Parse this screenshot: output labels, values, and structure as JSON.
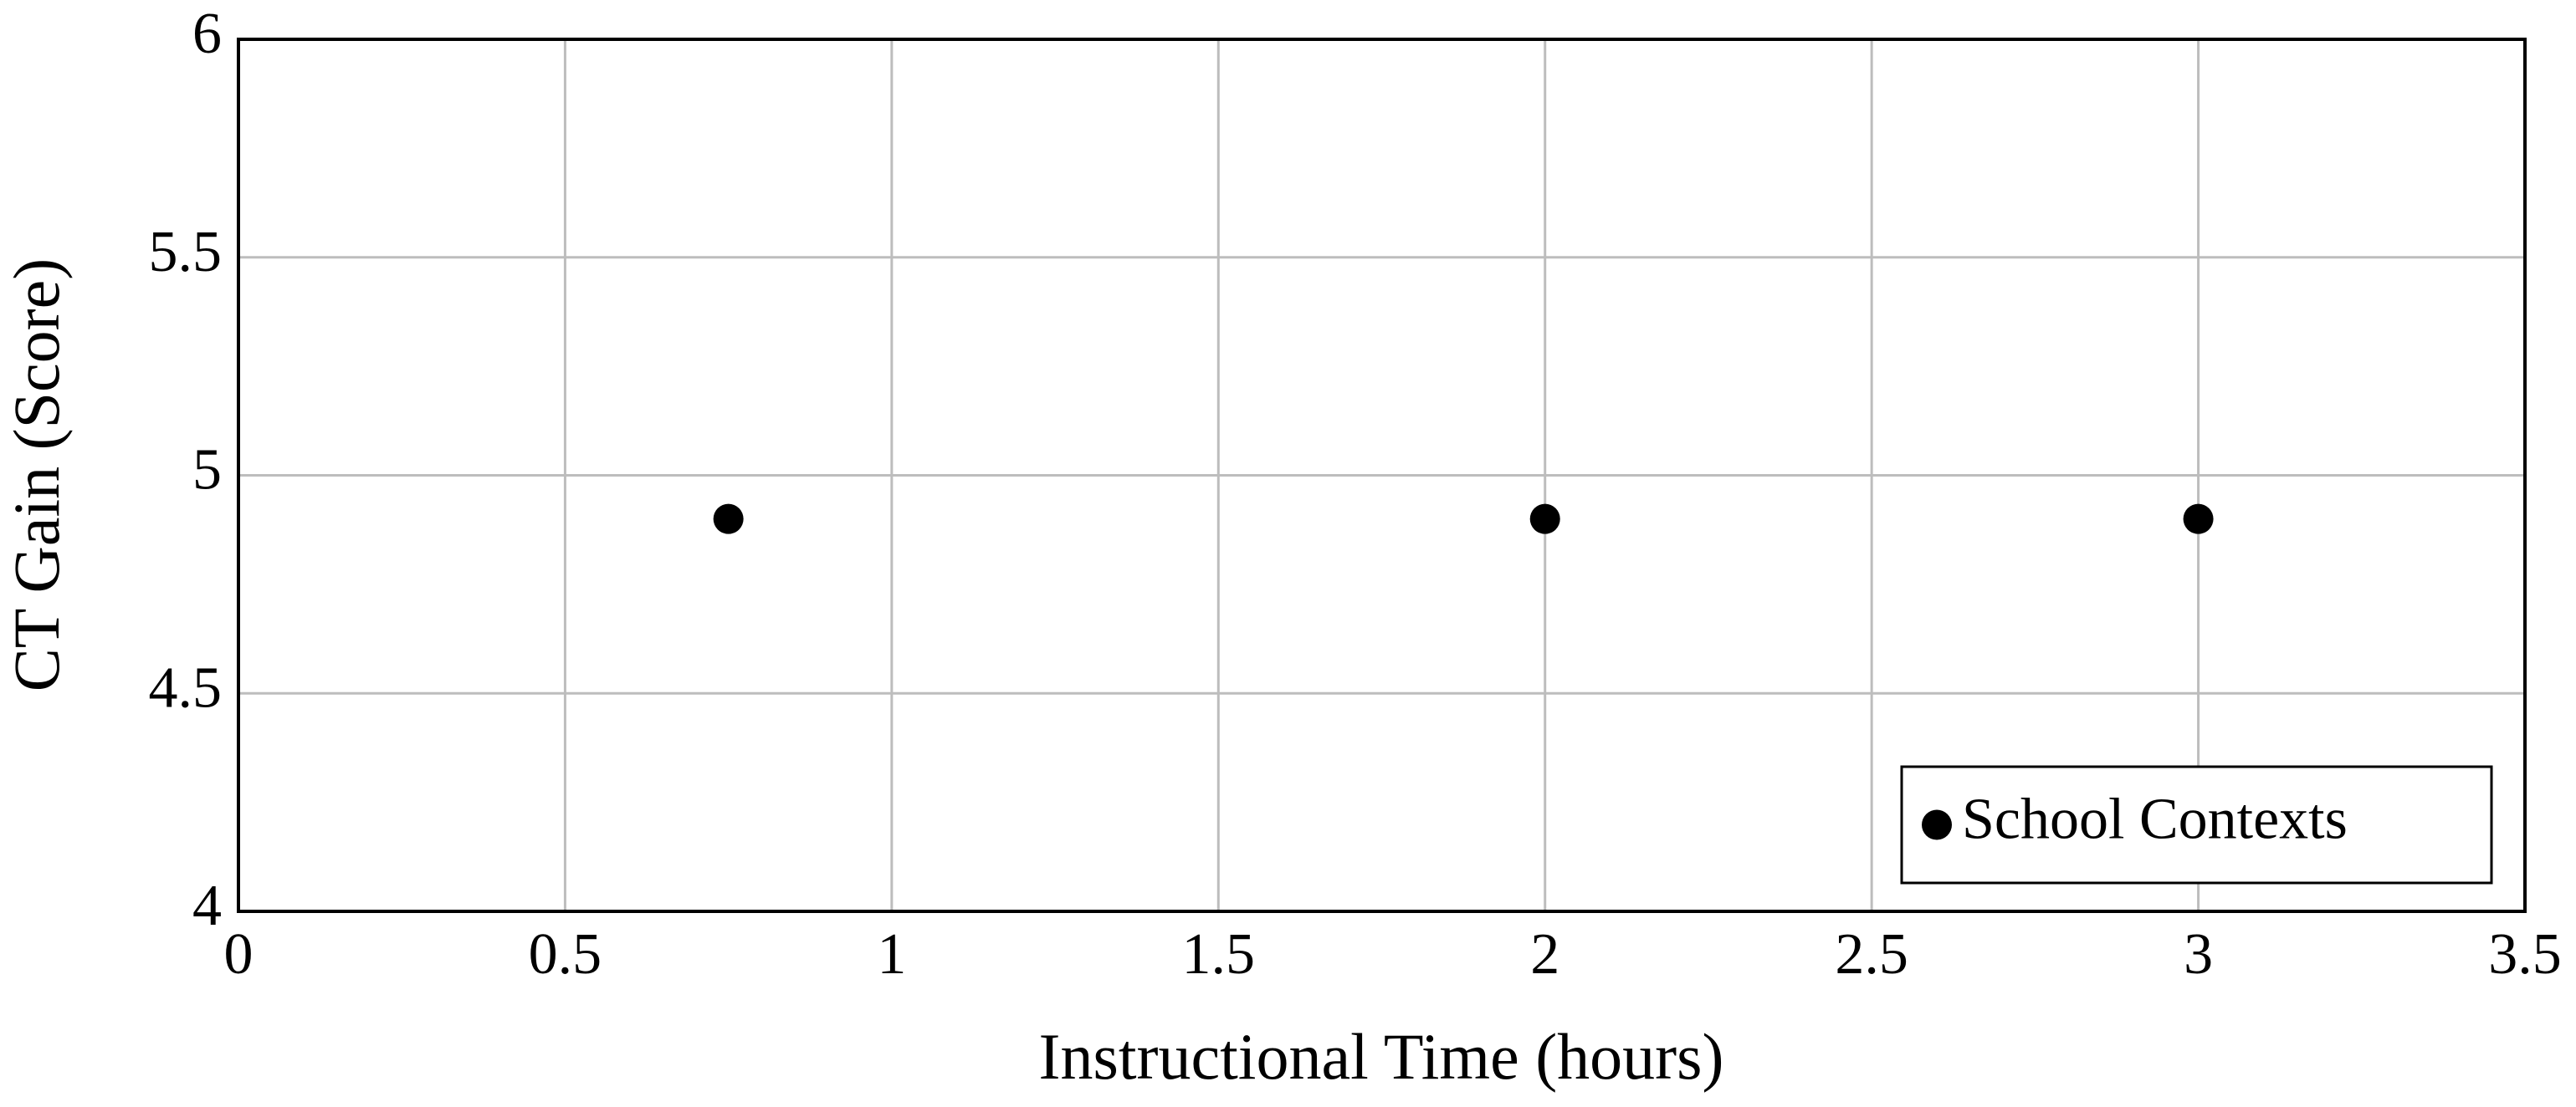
{
  "chart_data": {
    "type": "scatter",
    "x_label": "Instructional Time (hours)",
    "y_label": "CT Gain (Score)",
    "series": [
      {
        "name": "School Contexts",
        "color": "#000000",
        "x": [
          0.75,
          2,
          3
        ],
        "values": [
          4.9,
          4.9,
          4.9
        ]
      }
    ],
    "xlim": [
      0,
      3.5
    ],
    "xticks": [
      0,
      0.5,
      1,
      1.5,
      2,
      2.5,
      3,
      3.5
    ],
    "ylim": [
      4,
      6
    ],
    "yticks": [
      4,
      4.5,
      5,
      5.5,
      6
    ],
    "grid": true,
    "legend": "lower right"
  }
}
